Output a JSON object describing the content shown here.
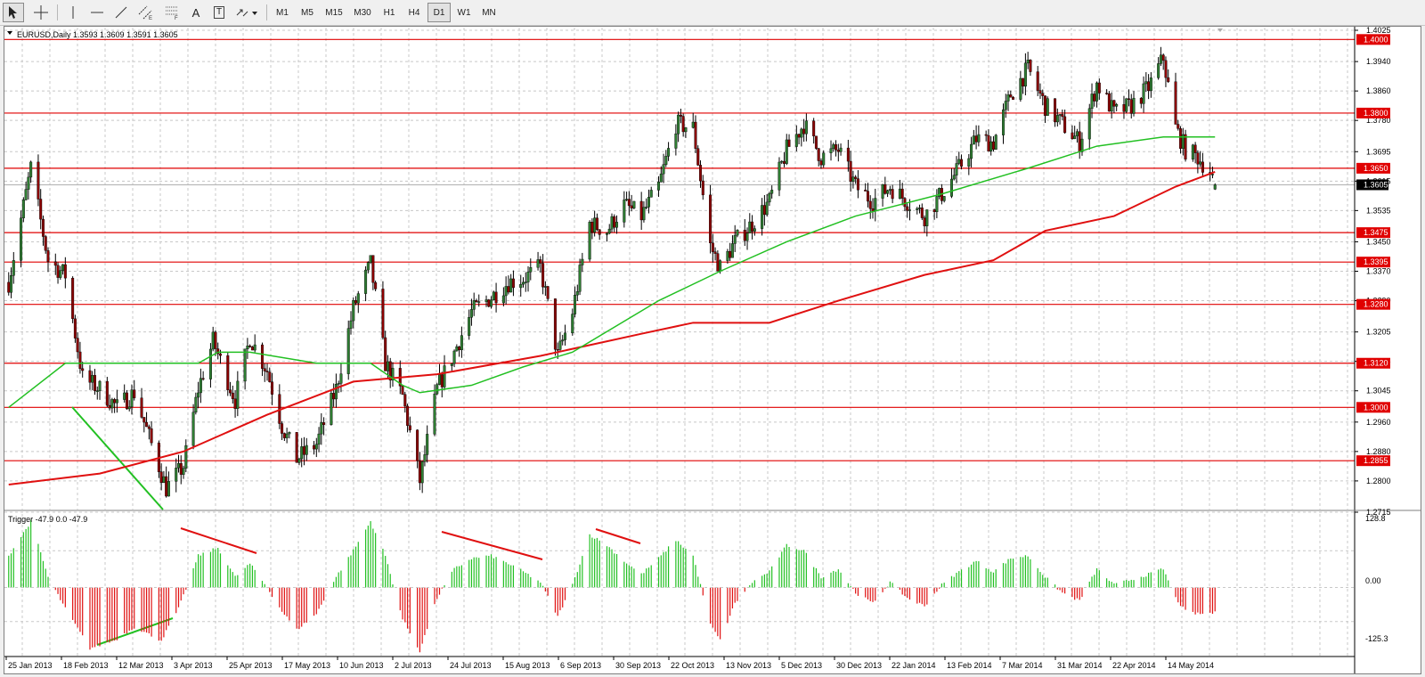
{
  "toolbar": {
    "tools": [
      {
        "name": "cursor-tool-button",
        "icon": "arrow-cursor-icon",
        "label": ""
      },
      {
        "name": "crosshair-tool-button",
        "icon": "crosshair-icon",
        "label": ""
      },
      {
        "name": "vertical-line-tool-button",
        "icon": "vertical-line-icon",
        "label": ""
      },
      {
        "name": "horizontal-line-tool-button",
        "icon": "horizontal-line-icon",
        "label": ""
      },
      {
        "name": "trendline-tool-button",
        "icon": "trendline-icon",
        "label": ""
      },
      {
        "name": "equidistant-channel-tool-button",
        "icon": "channel-icon",
        "label": ""
      },
      {
        "name": "fibonacci-tool-button",
        "icon": "fibonacci-icon",
        "label": ""
      },
      {
        "name": "text-tool-button",
        "icon": "text-icon",
        "label": "A"
      },
      {
        "name": "text-label-tool-button",
        "icon": "text-label-icon",
        "label": "T"
      },
      {
        "name": "arrows-tool-button",
        "icon": "arrows-dropdown-icon",
        "label": ""
      }
    ],
    "periods": [
      "M1",
      "M5",
      "M15",
      "M30",
      "H1",
      "H4",
      "D1",
      "W1",
      "MN"
    ],
    "active_period": "D1"
  },
  "main_chart": {
    "header": "EURUSD,Daily  1.3593 1.3609 1.3591 1.3605",
    "price_ticks": [
      "1.4025",
      "1.3940",
      "1.3860",
      "1.3780",
      "1.3695",
      "1.3615",
      "1.3535",
      "1.3450",
      "1.3370",
      "1.3290",
      "1.3205",
      "1.3125",
      "1.3045",
      "1.2960",
      "1.2880",
      "1.2800",
      "1.2715"
    ],
    "levels": [
      {
        "price": 1.4,
        "label": "1.4000"
      },
      {
        "price": 1.38,
        "label": "1.3800"
      },
      {
        "price": 1.365,
        "label": "1.3650"
      },
      {
        "price": 1.3475,
        "label": "1.3475"
      },
      {
        "price": 1.3395,
        "label": "1.3395"
      },
      {
        "price": 1.328,
        "label": "1.3280"
      },
      {
        "price": 1.312,
        "label": "1.3120"
      },
      {
        "price": 1.3,
        "label": "1.3000"
      },
      {
        "price": 1.2855,
        "label": "1.2855"
      }
    ],
    "current_price": "1.3605",
    "level_color": "#e00000",
    "ma_fast_color": "#22c022",
    "ma_slow_color": "#e01010"
  },
  "indicator": {
    "header": "Trigger -47.9 0.0 -47.9",
    "ticks": [
      "128.8",
      "0.00",
      "-125.3"
    ],
    "positive_color": "#22c022",
    "negative_color": "#e01010"
  },
  "time_labels": [
    "25 Jan 2013",
    "18 Feb 2013",
    "12 Mar 2013",
    "3 Apr 2013",
    "25 Apr 2013",
    "17 May 2013",
    "10 Jun 2013",
    "2 Jul 2013",
    "24 Jul 2013",
    "15 Aug 2013",
    "6 Sep 2013",
    "30 Sep 2013",
    "22 Oct 2013",
    "13 Nov 2013",
    "5 Dec 2013",
    "30 Dec 2013",
    "22 Jan 2014",
    "13 Feb 2014",
    "7 Mar 2014",
    "31 Mar 2014",
    "22 Apr 2014",
    "14 May 2014"
  ],
  "chart_data": {
    "type": "candlestick",
    "symbol": "EURUSD",
    "timeframe": "Daily",
    "last_bar": {
      "open": 1.3593,
      "high": 1.3609,
      "low": 1.3591,
      "close": 1.3605
    },
    "ylim": [
      1.2715,
      1.4025
    ],
    "close_path": [
      {
        "date": "2013-01-23",
        "close": 1.334
      },
      {
        "date": "2013-02-01",
        "close": 1.365
      },
      {
        "date": "2013-02-08",
        "close": 1.34
      },
      {
        "date": "2013-02-15",
        "close": 1.336
      },
      {
        "date": "2013-02-22",
        "close": 1.308
      },
      {
        "date": "2013-03-01",
        "close": 1.305
      },
      {
        "date": "2013-03-08",
        "close": 1.3
      },
      {
        "date": "2013-03-15",
        "close": 1.304
      },
      {
        "date": "2013-03-22",
        "close": 1.29
      },
      {
        "date": "2013-03-28",
        "close": 1.278
      },
      {
        "date": "2013-04-04",
        "close": 1.284
      },
      {
        "date": "2013-04-10",
        "close": 1.305
      },
      {
        "date": "2013-04-16",
        "close": 1.318
      },
      {
        "date": "2013-04-25",
        "close": 1.302
      },
      {
        "date": "2013-05-01",
        "close": 1.319
      },
      {
        "date": "2013-05-08",
        "close": 1.31
      },
      {
        "date": "2013-05-14",
        "close": 1.295
      },
      {
        "date": "2013-05-20",
        "close": 1.286
      },
      {
        "date": "2013-05-28",
        "close": 1.29
      },
      {
        "date": "2013-06-05",
        "close": 1.305
      },
      {
        "date": "2013-06-12",
        "close": 1.327
      },
      {
        "date": "2013-06-19",
        "close": 1.339
      },
      {
        "date": "2013-06-25",
        "close": 1.312
      },
      {
        "date": "2013-07-02",
        "close": 1.303
      },
      {
        "date": "2013-07-09",
        "close": 1.28
      },
      {
        "date": "2013-07-16",
        "close": 1.305
      },
      {
        "date": "2013-07-23",
        "close": 1.315
      },
      {
        "date": "2013-07-30",
        "close": 1.326
      },
      {
        "date": "2013-08-07",
        "close": 1.33
      },
      {
        "date": "2013-08-14",
        "close": 1.334
      },
      {
        "date": "2013-08-20",
        "close": 1.335
      },
      {
        "date": "2013-08-27",
        "close": 1.338
      },
      {
        "date": "2013-09-03",
        "close": 1.314
      },
      {
        "date": "2013-09-09",
        "close": 1.326
      },
      {
        "date": "2013-09-16",
        "close": 1.35
      },
      {
        "date": "2013-09-23",
        "close": 1.348
      },
      {
        "date": "2013-09-30",
        "close": 1.355
      },
      {
        "date": "2013-10-07",
        "close": 1.352
      },
      {
        "date": "2013-10-14",
        "close": 1.36
      },
      {
        "date": "2013-10-21",
        "close": 1.377
      },
      {
        "date": "2013-10-28",
        "close": 1.376
      },
      {
        "date": "2013-11-04",
        "close": 1.344
      },
      {
        "date": "2013-11-08",
        "close": 1.338
      },
      {
        "date": "2013-11-14",
        "close": 1.345
      },
      {
        "date": "2013-11-21",
        "close": 1.35
      },
      {
        "date": "2013-11-28",
        "close": 1.356
      },
      {
        "date": "2013-12-05",
        "close": 1.37
      },
      {
        "date": "2013-12-12",
        "close": 1.377
      },
      {
        "date": "2013-12-19",
        "close": 1.368
      },
      {
        "date": "2013-12-26",
        "close": 1.37
      },
      {
        "date": "2014-01-02",
        "close": 1.36
      },
      {
        "date": "2014-01-09",
        "close": 1.356
      },
      {
        "date": "2014-01-16",
        "close": 1.36
      },
      {
        "date": "2014-01-23",
        "close": 1.356
      },
      {
        "date": "2014-01-30",
        "close": 1.352
      },
      {
        "date": "2014-02-06",
        "close": 1.358
      },
      {
        "date": "2014-02-13",
        "close": 1.365
      },
      {
        "date": "2014-02-20",
        "close": 1.373
      },
      {
        "date": "2014-02-27",
        "close": 1.372
      },
      {
        "date": "2014-03-06",
        "close": 1.385
      },
      {
        "date": "2014-03-13",
        "close": 1.392
      },
      {
        "date": "2014-03-20",
        "close": 1.382
      },
      {
        "date": "2014-03-27",
        "close": 1.377
      },
      {
        "date": "2014-04-03",
        "close": 1.372
      },
      {
        "date": "2014-04-10",
        "close": 1.388
      },
      {
        "date": "2014-04-17",
        "close": 1.38
      },
      {
        "date": "2014-04-24",
        "close": 1.382
      },
      {
        "date": "2014-05-01",
        "close": 1.387
      },
      {
        "date": "2014-05-07",
        "close": 1.395
      },
      {
        "date": "2014-05-12",
        "close": 1.376
      },
      {
        "date": "2014-05-16",
        "close": 1.37
      },
      {
        "date": "2014-05-21",
        "close": 1.368
      },
      {
        "date": "2014-05-26",
        "close": 1.364
      },
      {
        "date": "2014-05-28",
        "close": 1.3605
      }
    ],
    "ma_fast": [
      {
        "date": "2013-01-23",
        "value": 1.3
      },
      {
        "date": "2013-02-15",
        "value": 1.312
      },
      {
        "date": "2013-03-15",
        "value": 1.312
      },
      {
        "date": "2013-04-10",
        "value": 1.312
      },
      {
        "date": "2013-04-18",
        "value": 1.315
      },
      {
        "date": "2013-05-01",
        "value": 1.315
      },
      {
        "date": "2013-05-28",
        "value": 1.312
      },
      {
        "date": "2013-06-19",
        "value": 1.312
      },
      {
        "date": "2013-07-02",
        "value": 1.306
      },
      {
        "date": "2013-07-09",
        "value": 1.304
      },
      {
        "date": "2013-07-30",
        "value": 1.306
      },
      {
        "date": "2013-08-20",
        "value": 1.311
      },
      {
        "date": "2013-09-09",
        "value": 1.315
      },
      {
        "date": "2013-10-14",
        "value": 1.329
      },
      {
        "date": "2013-11-08",
        "value": 1.337
      },
      {
        "date": "2013-12-05",
        "value": 1.345
      },
      {
        "date": "2014-01-02",
        "value": 1.352
      },
      {
        "date": "2014-02-06",
        "value": 1.358
      },
      {
        "date": "2014-03-13",
        "value": 1.365
      },
      {
        "date": "2014-04-10",
        "value": 1.371
      },
      {
        "date": "2014-05-07",
        "value": 1.3735
      },
      {
        "date": "2014-05-28",
        "value": 1.3735
      }
    ],
    "ma_slow": [
      {
        "date": "2013-01-23",
        "value": 1.279
      },
      {
        "date": "2013-03-01",
        "value": 1.282
      },
      {
        "date": "2013-04-04",
        "value": 1.288
      },
      {
        "date": "2013-05-08",
        "value": 1.298
      },
      {
        "date": "2013-06-12",
        "value": 1.307
      },
      {
        "date": "2013-07-16",
        "value": 1.309
      },
      {
        "date": "2013-08-27",
        "value": 1.314
      },
      {
        "date": "2013-10-07",
        "value": 1.32
      },
      {
        "date": "2013-10-28",
        "value": 1.323
      },
      {
        "date": "2013-11-28",
        "value": 1.323
      },
      {
        "date": "2013-12-26",
        "value": 1.329
      },
      {
        "date": "2014-01-30",
        "value": 1.336
      },
      {
        "date": "2014-02-27",
        "value": 1.34
      },
      {
        "date": "2014-03-20",
        "value": 1.348
      },
      {
        "date": "2014-04-17",
        "value": 1.352
      },
      {
        "date": "2014-05-12",
        "value": 1.36
      },
      {
        "date": "2014-05-28",
        "value": 1.364
      }
    ],
    "indicator_ylim": [
      -125.3,
      128.8
    ],
    "trigger_samples": [
      {
        "date": "2013-01-23",
        "value": 60
      },
      {
        "date": "2013-02-01",
        "value": 125
      },
      {
        "date": "2013-02-08",
        "value": 20
      },
      {
        "date": "2013-02-15",
        "value": -40
      },
      {
        "date": "2013-02-25",
        "value": -115
      },
      {
        "date": "2013-03-07",
        "value": -100
      },
      {
        "date": "2013-03-15",
        "value": -75
      },
      {
        "date": "2013-03-26",
        "value": -100
      },
      {
        "date": "2013-04-02",
        "value": -40
      },
      {
        "date": "2013-04-10",
        "value": 60
      },
      {
        "date": "2013-04-18",
        "value": 75
      },
      {
        "date": "2013-04-25",
        "value": 20
      },
      {
        "date": "2013-05-01",
        "value": 45
      },
      {
        "date": "2013-05-08",
        "value": 0
      },
      {
        "date": "2013-05-14",
        "value": -45
      },
      {
        "date": "2013-05-20",
        "value": -80
      },
      {
        "date": "2013-05-28",
        "value": -50
      },
      {
        "date": "2013-06-05",
        "value": 20
      },
      {
        "date": "2013-06-12",
        "value": 70
      },
      {
        "date": "2013-06-19",
        "value": 125
      },
      {
        "date": "2013-06-25",
        "value": 60
      },
      {
        "date": "2013-07-02",
        "value": -60
      },
      {
        "date": "2013-07-09",
        "value": -120
      },
      {
        "date": "2013-07-16",
        "value": -20
      },
      {
        "date": "2013-07-23",
        "value": 35
      },
      {
        "date": "2013-07-30",
        "value": 55
      },
      {
        "date": "2013-08-07",
        "value": 60
      },
      {
        "date": "2013-08-14",
        "value": 45
      },
      {
        "date": "2013-08-20",
        "value": 30
      },
      {
        "date": "2013-08-27",
        "value": 10
      },
      {
        "date": "2013-09-03",
        "value": -55
      },
      {
        "date": "2013-09-09",
        "value": 5
      },
      {
        "date": "2013-09-16",
        "value": 100
      },
      {
        "date": "2013-09-23",
        "value": 80
      },
      {
        "date": "2013-09-30",
        "value": 50
      },
      {
        "date": "2013-10-07",
        "value": 25
      },
      {
        "date": "2013-10-14",
        "value": 55
      },
      {
        "date": "2013-10-21",
        "value": 90
      },
      {
        "date": "2013-10-28",
        "value": 60
      },
      {
        "date": "2013-11-04",
        "value": -70
      },
      {
        "date": "2013-11-08",
        "value": -100
      },
      {
        "date": "2013-11-14",
        "value": -30
      },
      {
        "date": "2013-11-21",
        "value": 10
      },
      {
        "date": "2013-11-28",
        "value": 30
      },
      {
        "date": "2013-12-05",
        "value": 80
      },
      {
        "date": "2013-12-12",
        "value": 70
      },
      {
        "date": "2013-12-19",
        "value": 20
      },
      {
        "date": "2013-12-26",
        "value": 35
      },
      {
        "date": "2014-01-02",
        "value": -10
      },
      {
        "date": "2014-01-09",
        "value": -30
      },
      {
        "date": "2014-01-16",
        "value": 10
      },
      {
        "date": "2014-01-23",
        "value": -20
      },
      {
        "date": "2014-01-30",
        "value": -35
      },
      {
        "date": "2014-02-06",
        "value": 5
      },
      {
        "date": "2014-02-13",
        "value": 30
      },
      {
        "date": "2014-02-20",
        "value": 50
      },
      {
        "date": "2014-02-27",
        "value": 30
      },
      {
        "date": "2014-03-06",
        "value": 55
      },
      {
        "date": "2014-03-13",
        "value": 60
      },
      {
        "date": "2014-03-20",
        "value": 20
      },
      {
        "date": "2014-03-27",
        "value": -10
      },
      {
        "date": "2014-04-03",
        "value": -25
      },
      {
        "date": "2014-04-10",
        "value": 35
      },
      {
        "date": "2014-04-17",
        "value": 5
      },
      {
        "date": "2014-04-24",
        "value": 15
      },
      {
        "date": "2014-05-01",
        "value": 25
      },
      {
        "date": "2014-05-07",
        "value": 35
      },
      {
        "date": "2014-05-12",
        "value": -20
      },
      {
        "date": "2014-05-16",
        "value": -45
      },
      {
        "date": "2014-05-21",
        "value": -50
      },
      {
        "date": "2014-05-28",
        "value": -47.9
      }
    ]
  }
}
